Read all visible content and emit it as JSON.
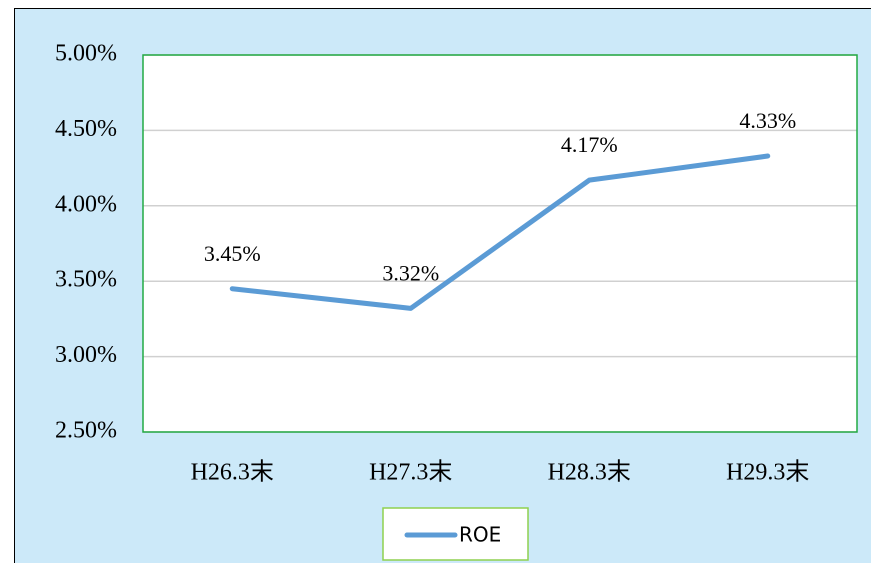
{
  "chart_data": {
    "type": "line",
    "categories": [
      "H26.3末",
      "H27.3末",
      "H28.3末",
      "H29.3末"
    ],
    "series": [
      {
        "name": "ROE",
        "color": "#5b9bd5",
        "values": [
          3.45,
          3.32,
          4.17,
          4.33
        ],
        "value_labels": [
          "3.45%",
          "3.32%",
          "4.17%",
          "4.33%"
        ]
      }
    ],
    "ylim": [
      2.5,
      5
    ],
    "yticks": [
      {
        "value": 2.5,
        "label": "2.50%"
      },
      {
        "value": 3,
        "label": "3.00%"
      },
      {
        "value": 3.5,
        "label": "3.50%"
      },
      {
        "value": 4,
        "label": "4.00%"
      },
      {
        "value": 4.5,
        "label": "4.50%"
      },
      {
        "value": 5,
        "label": "5.00%"
      }
    ],
    "grid": true,
    "legend": "bottom"
  }
}
